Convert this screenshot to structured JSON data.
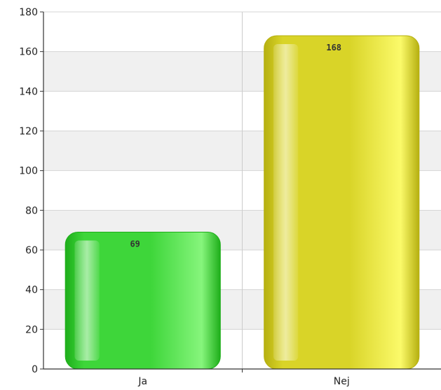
{
  "chart_data": {
    "type": "bar",
    "categories": [
      "Ja",
      "Nej"
    ],
    "values": [
      69,
      168
    ],
    "ylim": [
      0,
      180
    ],
    "yticks": [
      "0",
      "20",
      "40",
      "60",
      "80",
      "100",
      "120",
      "140",
      "160",
      "180"
    ],
    "data_labels": [
      "69",
      "168"
    ],
    "colors": {
      "Ja": {
        "light": "#86f57c",
        "base": "#3ed63a",
        "dark": "#1eae1a"
      },
      "Nej": {
        "light": "#fbfa6a",
        "base": "#d9d428",
        "dark": "#b6b010"
      }
    },
    "grid": true,
    "legend": "none"
  }
}
